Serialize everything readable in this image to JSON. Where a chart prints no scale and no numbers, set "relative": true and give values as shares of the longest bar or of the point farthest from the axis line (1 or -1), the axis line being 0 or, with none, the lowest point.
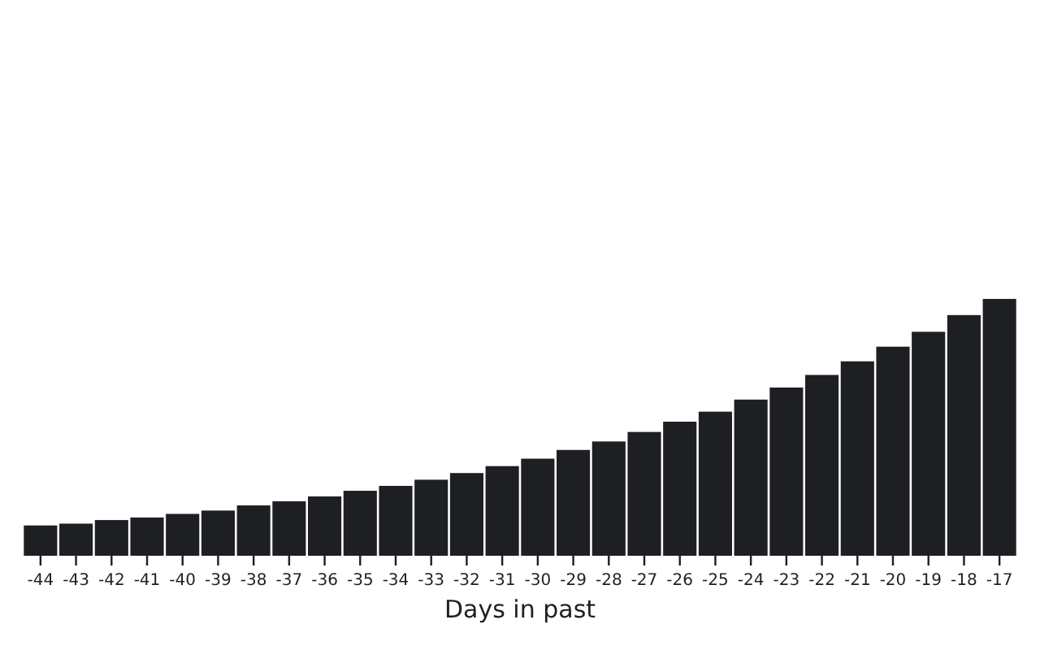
{
  "chart_data": {
    "type": "bar",
    "xlabel": "Days in past",
    "relative": true,
    "color": "#1d1f22",
    "categories": [
      "-44",
      "-43",
      "-42",
      "-41",
      "-40",
      "-39",
      "-38",
      "-37",
      "-36",
      "-35",
      "-34",
      "-33",
      "-32",
      "-31",
      "-30",
      "-29",
      "-28",
      "-27",
      "-26",
      "-25",
      "-24",
      "-23",
      "-22",
      "-21",
      "-20",
      "-19",
      "-18",
      "-17"
    ],
    "values": [
      0.118,
      0.125,
      0.139,
      0.149,
      0.163,
      0.176,
      0.196,
      0.212,
      0.231,
      0.253,
      0.272,
      0.296,
      0.322,
      0.349,
      0.378,
      0.412,
      0.445,
      0.482,
      0.522,
      0.561,
      0.608,
      0.655,
      0.704,
      0.757,
      0.814,
      0.872,
      0.937,
      1
    ]
  }
}
